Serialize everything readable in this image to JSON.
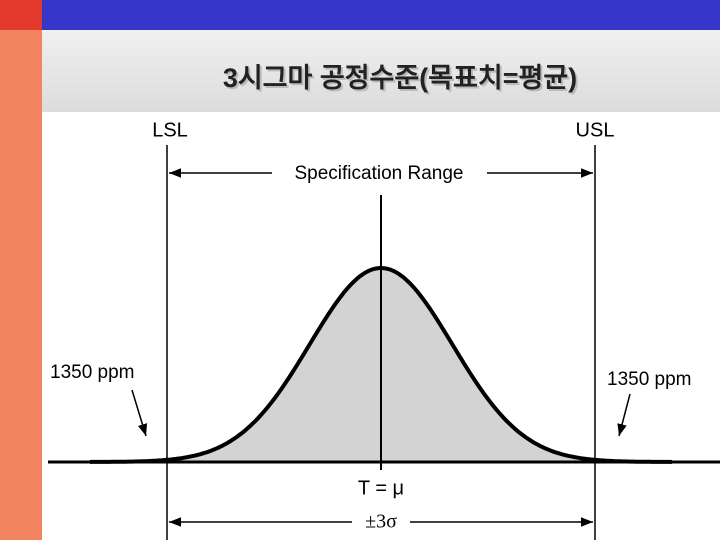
{
  "header": {
    "title": "3시그마 공정수준(목표치=평균)"
  },
  "diagram": {
    "lsl": "LSL",
    "usl": "USL",
    "range": "Specification Range",
    "left_ppm": "1350 ppm",
    "right_ppm": "1350 ppm",
    "target": "T = μ",
    "spread": "±3σ"
  }
}
